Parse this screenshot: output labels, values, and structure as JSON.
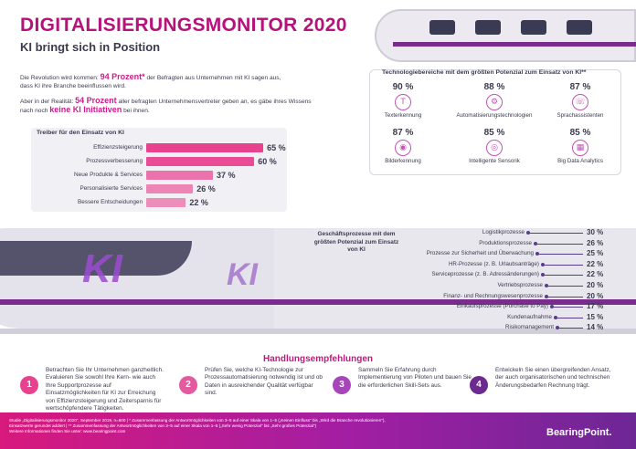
{
  "header": {
    "title": "DIGITALISIERUNGSMONITOR 2020",
    "subtitle": "KI bringt sich in Position"
  },
  "intro": {
    "p1_pre": "Die Revolution wird kommen: ",
    "p1_hl": "94 Prozent*",
    "p1_post": " der Befragten aus Unternehmen mit KI sagen aus, dass KI ihre Branche beeinflussen wird.",
    "p2_pre": "Aber in der Realität: ",
    "p2_hl": "54 Prozent",
    "p2_mid": " aller befragten Unternehmensvertreter geben an, es gäbe ihres Wissens nach noch ",
    "p2_hl2": "keine KI Initiativen",
    "p2_post": " bei ihnen."
  },
  "tech": {
    "title": "Technologiebereiche mit dem größten Potenzial zum Einsatz von KI**",
    "items": [
      {
        "pct": "90 %",
        "label": "Texterkennung",
        "icon": "text-recognition-icon",
        "glyph": "T"
      },
      {
        "pct": "88 %",
        "label": "Automatisierungstechnologien",
        "icon": "automation-icon",
        "glyph": "⚙"
      },
      {
        "pct": "87 %",
        "label": "Sprachassistenten",
        "icon": "voice-assistant-icon",
        "glyph": "☏"
      },
      {
        "pct": "87 %",
        "label": "Bilderkennung",
        "icon": "image-recognition-icon",
        "glyph": "◉"
      },
      {
        "pct": "85 %",
        "label": "Intelligente Sensorik",
        "icon": "sensor-icon",
        "glyph": "◎"
      },
      {
        "pct": "85 %",
        "label": "Big Data Analytics",
        "icon": "analytics-icon",
        "glyph": "▦"
      }
    ]
  },
  "drivers": {
    "title": "Treiber für den Einsatz von KI",
    "items": [
      {
        "label": "Effizienzsteigerung",
        "value": 65,
        "display": "65 %"
      },
      {
        "label": "Prozessverbesserung",
        "value": 60,
        "display": "60 %"
      },
      {
        "label": "Neue Produkte & Services",
        "value": 37,
        "display": "37 %"
      },
      {
        "label": "Personalisierte Services",
        "value": 26,
        "display": "26 %"
      },
      {
        "label": "Bessere Entscheidungen",
        "value": 22,
        "display": "22 %"
      }
    ]
  },
  "train": {
    "ki_text": "KI",
    "ki_text2": "KI"
  },
  "processes": {
    "title": "Geschäftsprozesse mit dem größten Potenzial zum Einsatz von KI",
    "items": [
      {
        "label": "Logistikprozesse",
        "value": 30,
        "display": "30 %"
      },
      {
        "label": "Produktionsprozesse",
        "value": 26,
        "display": "26 %"
      },
      {
        "label": "Prozesse zur Sicherheit und Überwachung",
        "value": 25,
        "display": "25 %"
      },
      {
        "label": "HR-Prozesse (z. B. Urlaubsanträge)",
        "value": 22,
        "display": "22 %"
      },
      {
        "label": "Serviceprozesse (z. B. Adressänderungen)",
        "value": 22,
        "display": "22 %"
      },
      {
        "label": "Vertriebsprozesse",
        "value": 20,
        "display": "20 %"
      },
      {
        "label": "Finanz- und Rechnungswesenprozesse",
        "value": 20,
        "display": "20 %"
      },
      {
        "label": "Einkaufsprozesse (Purchase to Pay)",
        "value": 17,
        "display": "17 %"
      },
      {
        "label": "Kundenaufnahme",
        "value": 15,
        "display": "15 %"
      },
      {
        "label": "Risikomanagement",
        "value": 14,
        "display": "14 %"
      }
    ]
  },
  "recommendations": {
    "title": "Handlungsempfehlungen",
    "items": [
      {
        "num": "1",
        "color": "#e8428f",
        "text": "Betrachten Sie Ihr Unternehmen ganzheitlich. Evaluieren Sie sowohl Ihre Kern- wie auch Ihre Supportprozesse auf Einsatzmöglichkeiten für KI zur Erreichung von Effizienzsteigerung und Zeitersparnis für wertschöpfendere Tätigkeiten."
      },
      {
        "num": "2",
        "color": "#e35a9f",
        "text": "Prüfen Sie, welche KI-Technologie zur Prozessautomatisierung notwendig ist und ob Daten in ausreichender Qualität verfügbar sind."
      },
      {
        "num": "3",
        "color": "#a646b8",
        "text": "Sammeln Sie Erfahrung durch Implementierung von Piloten und bauen Sie die erforderlichen Skill-Sets aus."
      },
      {
        "num": "4",
        "color": "#6b2a8e",
        "text": "Entwickeln Sie einen übergreifenden Ansatz, der auch organisatorischen und technischen Änderungsbedarfen Rechnung trägt."
      }
    ]
  },
  "footer": {
    "line1": "Studie „Digitalisierungsmonitor 2020\", September 2019, n=600 | * Zusammenfassung der Antwortmöglichkeiten von 3–5 auf einer Skala von 1–5 („Keinen Einfluss\" bis „Wird die Branche revolutionieren\"),",
    "line2": "Einsatzwerte gerundet addiert | ** Zusammenfassung der Antwortmöglichkeiten von 3–5 auf einer Skala von 1–5 („Sehr wenig Potenzial\" bis „Sehr großes Potenzial\")",
    "line3": "Weitere Informationen finden Sie unter: www.bearingpoint.com",
    "brand": "BearingPoint."
  }
}
